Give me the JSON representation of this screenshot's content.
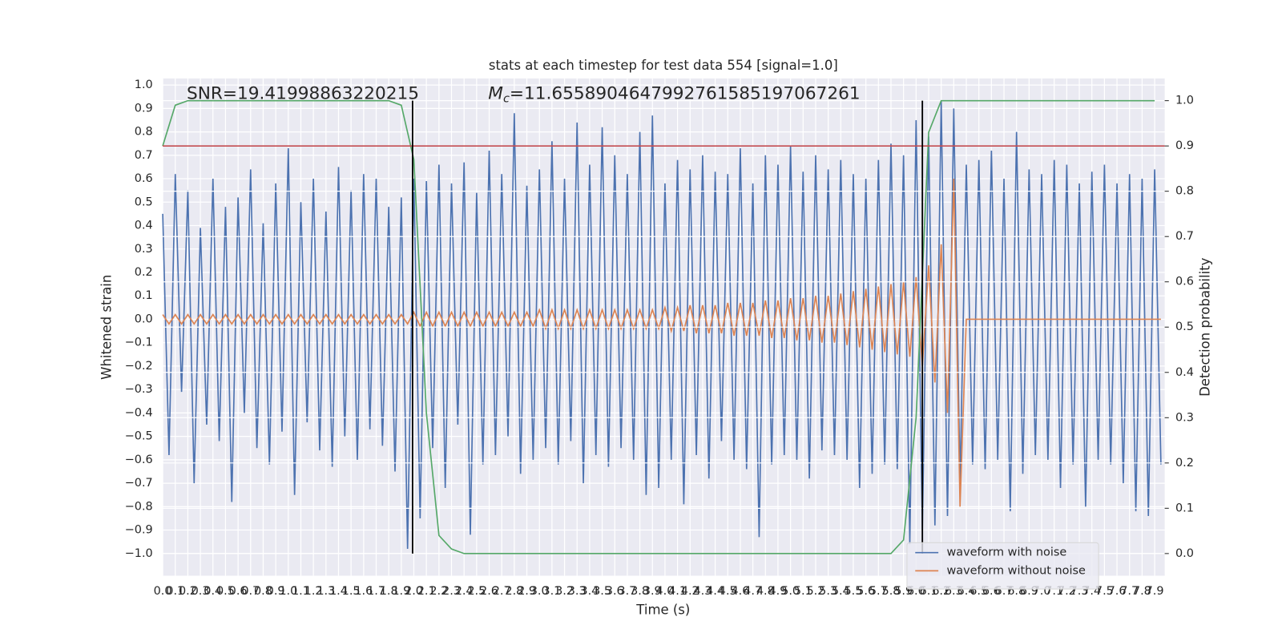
{
  "chart_data": {
    "type": "line",
    "title": "stats at each timestep for test data 554 [signal=1.0]",
    "xlabel": "Time (s)",
    "ylabel": "Whitened strain",
    "y2label": "Detection probability",
    "annotations": [
      {
        "text": "SNR=19.41998863220215"
      }
    ],
    "mc_annotation": {
      "symbol": "M",
      "subscript": "c",
      "text": "=11.6558904647992761585197067261"
    },
    "grid": true,
    "legend": "lower right",
    "xlim": [
      0,
      7.98
    ],
    "ylim": [
      -1.095,
      1.028
    ],
    "y2lim": [
      -0.049,
      1.049
    ],
    "xticks": [
      {
        "value": 0,
        "label": "0.0"
      },
      0.1,
      0.2,
      0.3,
      0.4,
      0.5,
      0.6,
      0.7,
      0.8,
      0.9,
      {
        "value": 1,
        "label": "1.0"
      },
      1.1,
      1.2,
      1.3,
      1.4,
      1.5,
      1.6,
      1.7,
      1.8,
      1.9,
      {
        "value": 2,
        "label": "2.0"
      },
      2.1,
      2.2,
      2.3,
      2.4,
      2.5,
      2.6,
      2.7,
      2.8,
      2.9,
      {
        "value": 3,
        "label": "3.0"
      },
      3.1,
      3.2,
      3.3,
      3.4,
      3.5,
      3.6,
      3.7,
      3.8,
      3.9,
      {
        "value": 4,
        "label": "4.0"
      },
      4.1,
      4.2,
      4.3,
      4.4,
      4.5,
      4.6,
      4.7,
      4.8,
      4.9,
      {
        "value": 5,
        "label": "5.0"
      },
      5.1,
      5.2,
      5.3,
      5.4,
      5.5,
      5.6,
      5.7,
      5.8,
      5.9,
      {
        "value": 6,
        "label": "6.0"
      },
      6.1,
      6.2,
      6.3,
      6.4,
      6.5,
      6.6,
      6.7,
      6.8,
      6.9,
      {
        "value": 7,
        "label": "7.0"
      },
      7.1,
      7.2,
      7.3,
      7.4,
      7.5,
      7.6,
      7.7,
      7.8,
      7.9
    ],
    "yticks": [
      {
        "value": -1,
        "label": "−1.0"
      },
      {
        "value": -0.9,
        "label": "−0.9"
      },
      {
        "value": -0.8,
        "label": "−0.8"
      },
      {
        "value": -0.7,
        "label": "−0.7"
      },
      {
        "value": -0.6,
        "label": "−0.6"
      },
      {
        "value": -0.5,
        "label": "−0.5"
      },
      {
        "value": -0.4,
        "label": "−0.4"
      },
      {
        "value": -0.3,
        "label": "−0.3"
      },
      {
        "value": -0.2,
        "label": "−0.2"
      },
      {
        "value": -0.1,
        "label": "−0.1"
      },
      {
        "value": 0,
        "label": "0.0"
      },
      0.1,
      0.2,
      0.3,
      0.4,
      0.5,
      0.6,
      0.7,
      0.8,
      0.9,
      {
        "value": 1,
        "label": "1.0"
      }
    ],
    "y2ticks": [
      {
        "value": 0,
        "label": "0.0"
      },
      0.1,
      0.2,
      0.3,
      0.4,
      0.5,
      0.6,
      0.7,
      0.8,
      0.9,
      {
        "value": 1,
        "label": "1.0"
      }
    ],
    "threshold": {
      "value": 0.9,
      "color": "#c44e52",
      "axis": "y2"
    },
    "vlines": {
      "x": [
        1.99,
        6.05
      ],
      "color": "#000000"
    },
    "x": [
      0,
      0.05,
      0.1,
      0.15,
      0.2,
      0.25,
      0.3,
      0.35,
      0.4,
      0.45,
      0.5,
      0.55,
      0.6,
      0.65,
      0.7,
      0.75,
      0.8,
      0.85,
      0.9,
      0.95,
      1,
      1.05,
      1.1,
      1.15,
      1.2,
      1.25,
      1.3,
      1.35,
      1.4,
      1.45,
      1.5,
      1.55,
      1.6,
      1.65,
      1.7,
      1.75,
      1.8,
      1.85,
      1.9,
      1.95,
      2,
      2.05,
      2.1,
      2.15,
      2.2,
      2.25,
      2.3,
      2.35,
      2.4,
      2.45,
      2.5,
      2.55,
      2.6,
      2.65,
      2.7,
      2.75,
      2.8,
      2.85,
      2.9,
      2.95,
      3,
      3.05,
      3.1,
      3.15,
      3.2,
      3.25,
      3.3,
      3.35,
      3.4,
      3.45,
      3.5,
      3.55,
      3.6,
      3.65,
      3.7,
      3.75,
      3.8,
      3.85,
      3.9,
      3.95,
      4,
      4.05,
      4.1,
      4.15,
      4.2,
      4.25,
      4.3,
      4.35,
      4.4,
      4.45,
      4.5,
      4.55,
      4.6,
      4.65,
      4.7,
      4.75,
      4.8,
      4.85,
      4.9,
      4.95,
      5,
      5.05,
      5.1,
      5.15,
      5.2,
      5.25,
      5.3,
      5.35,
      5.4,
      5.45,
      5.5,
      5.55,
      5.6,
      5.65,
      5.7,
      5.75,
      5.8,
      5.85,
      5.9,
      5.95,
      6,
      6.05,
      6.1,
      6.15,
      6.2,
      6.25,
      6.3,
      6.35,
      6.4,
      6.45,
      6.5,
      6.55,
      6.6,
      6.65,
      6.7,
      6.75,
      6.8,
      6.85,
      6.9,
      6.95,
      7,
      7.05,
      7.1,
      7.15,
      7.2,
      7.25,
      7.3,
      7.35,
      7.4,
      7.45,
      7.5,
      7.55,
      7.6,
      7.65,
      7.7,
      7.75,
      7.8,
      7.85,
      7.9,
      7.95
    ],
    "series": [
      {
        "name": "waveform with noise",
        "color": "#4c72b0",
        "values": [
          0.45,
          -0.58,
          0.62,
          -0.31,
          0.55,
          -0.7,
          0.39,
          -0.45,
          0.6,
          -0.52,
          0.48,
          -0.78,
          0.52,
          -0.4,
          0.64,
          -0.55,
          0.41,
          -0.62,
          0.58,
          -0.48,
          0.73,
          -0.75,
          0.5,
          -0.44,
          0.6,
          -0.56,
          0.46,
          -0.63,
          0.65,
          -0.5,
          0.55,
          -0.6,
          0.62,
          -0.47,
          0.6,
          -0.54,
          0.48,
          -0.65,
          0.52,
          -0.98,
          0.6,
          -0.85,
          0.59,
          -0.55,
          0.66,
          -0.72,
          0.58,
          -0.45,
          0.67,
          -0.92,
          0.54,
          -0.62,
          0.72,
          -0.58,
          0.62,
          -0.5,
          0.88,
          -0.66,
          0.57,
          -0.6,
          0.64,
          -0.55,
          0.76,
          -0.62,
          0.6,
          -0.52,
          0.84,
          -0.7,
          0.66,
          -0.58,
          0.82,
          -0.63,
          0.7,
          -0.55,
          0.62,
          -0.6,
          0.8,
          -0.75,
          0.87,
          -0.72,
          0.58,
          -0.6,
          0.68,
          -0.79,
          0.64,
          -0.58,
          0.7,
          -0.68,
          0.63,
          -0.52,
          0.62,
          -0.6,
          0.73,
          -0.64,
          0.58,
          -0.93,
          0.7,
          -0.62,
          0.66,
          -0.58,
          0.74,
          -0.6,
          0.63,
          -0.68,
          0.7,
          -0.56,
          0.64,
          -0.58,
          0.68,
          -0.6,
          0.62,
          -0.72,
          0.6,
          -0.66,
          0.68,
          -0.62,
          0.75,
          -0.64,
          0.7,
          -0.96,
          0.85,
          -0.9,
          0.78,
          -0.88,
          0.93,
          -0.84,
          0.9,
          -0.7,
          0.66,
          -0.62,
          0.68,
          -0.64,
          0.72,
          -0.6,
          0.6,
          -0.82,
          0.8,
          -0.66,
          0.64,
          -0.58,
          0.62,
          -0.6,
          0.68,
          -0.72,
          0.66,
          -0.62,
          0.58,
          -0.8,
          0.63,
          -0.6,
          0.66,
          -0.62,
          0.58,
          -0.7,
          0.62,
          -0.82,
          0.6,
          -0.84,
          0.64,
          -0.62
        ]
      },
      {
        "name": "waveform without noise",
        "color": "#dd8452",
        "values": [
          0.02,
          -0.02,
          0.02,
          -0.02,
          0.02,
          -0.02,
          0.02,
          -0.02,
          0.02,
          -0.02,
          0.02,
          -0.02,
          0.02,
          -0.02,
          0.02,
          -0.02,
          0.02,
          -0.02,
          0.02,
          -0.02,
          0.02,
          -0.02,
          0.02,
          -0.02,
          0.02,
          -0.02,
          0.02,
          -0.02,
          0.02,
          -0.02,
          0.02,
          -0.02,
          0.02,
          -0.02,
          0.02,
          -0.02,
          0.02,
          -0.02,
          0.02,
          -0.02,
          0.03,
          -0.03,
          0.03,
          -0.03,
          0.03,
          -0.03,
          0.03,
          -0.03,
          0.03,
          -0.03,
          0.03,
          -0.03,
          0.03,
          -0.03,
          0.03,
          -0.03,
          0.03,
          -0.03,
          0.03,
          -0.03,
          0.04,
          -0.04,
          0.04,
          -0.04,
          0.04,
          -0.04,
          0.04,
          -0.04,
          0.04,
          -0.04,
          0.04,
          -0.04,
          0.04,
          -0.04,
          0.04,
          -0.04,
          0.04,
          -0.04,
          0.04,
          -0.04,
          0.05,
          -0.05,
          0.05,
          -0.05,
          0.06,
          -0.06,
          0.06,
          -0.06,
          0.06,
          -0.06,
          0.07,
          -0.07,
          0.07,
          -0.07,
          0.07,
          -0.07,
          0.08,
          -0.08,
          0.08,
          -0.08,
          0.09,
          -0.09,
          0.09,
          -0.09,
          0.1,
          -0.1,
          0.1,
          -0.1,
          0.11,
          -0.11,
          0.12,
          -0.12,
          0.13,
          -0.13,
          0.14,
          -0.14,
          0.15,
          -0.15,
          0.16,
          -0.16,
          0.18,
          -0.2,
          0.23,
          -0.27,
          0.32,
          -0.4,
          0.6,
          -0.8,
          0,
          0,
          0,
          0,
          0,
          0,
          0,
          0,
          0,
          0,
          0,
          0,
          0,
          0,
          0,
          0,
          0,
          0,
          0,
          0,
          0,
          0,
          0,
          0,
          0,
          0,
          0,
          0,
          0,
          0,
          0,
          0
        ]
      },
      {
        "color": "#55a868",
        "axis": "y2",
        "x": [
          0,
          0.1,
          0.2,
          0.3,
          0.4,
          0.5,
          0.6,
          0.7,
          0.8,
          0.9,
          1,
          1.1,
          1.2,
          1.3,
          1.4,
          1.5,
          1.6,
          1.7,
          1.8,
          1.9,
          2,
          2.1,
          2.2,
          2.3,
          2.4,
          2.5,
          2.6,
          2.7,
          2.8,
          2.9,
          3,
          3.1,
          3.2,
          3.3,
          3.4,
          3.5,
          3.6,
          3.7,
          3.8,
          3.9,
          4,
          4.1,
          4.2,
          4.3,
          4.4,
          4.5,
          4.6,
          4.7,
          4.8,
          4.9,
          5,
          5.1,
          5.2,
          5.3,
          5.4,
          5.5,
          5.6,
          5.7,
          5.8,
          5.9,
          6,
          6.1,
          6.2,
          6.3,
          6.4,
          6.5,
          6.6,
          6.7,
          6.8,
          6.9,
          7,
          7.1,
          7.2,
          7.3,
          7.4,
          7.5,
          7.6,
          7.7,
          7.8,
          7.9
        ],
        "values": [
          0.9,
          0.99,
          1,
          1,
          1,
          1,
          1,
          1,
          1,
          1,
          1,
          1,
          1,
          1,
          1,
          1,
          1,
          1,
          1,
          0.99,
          0.87,
          0.31,
          0.04,
          0.01,
          0,
          0,
          0,
          0,
          0,
          0,
          0,
          0,
          0,
          0,
          0,
          0,
          0,
          0,
          0,
          0,
          0,
          0,
          0,
          0,
          0,
          0,
          0,
          0,
          0,
          0,
          0,
          0,
          0,
          0,
          0,
          0,
          0,
          0,
          0,
          0.03,
          0.3,
          0.93,
          1,
          1,
          1,
          1,
          1,
          1,
          1,
          1,
          1,
          1,
          1,
          1,
          1,
          1,
          1,
          1,
          1,
          1
        ]
      }
    ]
  }
}
